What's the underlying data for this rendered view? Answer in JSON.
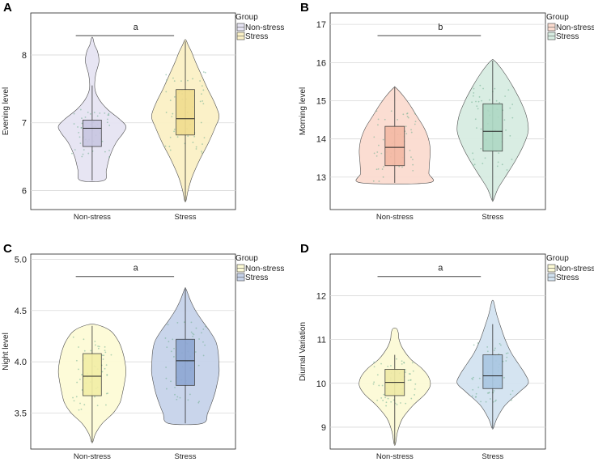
{
  "chart_data": [
    {
      "type": "violin",
      "panel_label": "A",
      "ylabel": "Evening level",
      "categories": [
        "Non-stress",
        "Stress"
      ],
      "ylim": [
        5.72,
        8.62
      ],
      "yticks": [
        6,
        7,
        8
      ],
      "grid": true,
      "legend": {
        "title": "Group",
        "entries": [
          "Non-stress",
          "Stress"
        ],
        "placement": "top-right-outside"
      },
      "significance": "a",
      "series": [
        {
          "name": "Non-stress",
          "fill": "#e6e4f3",
          "box_fill": "#c9c6e2",
          "min": 6.15,
          "q1": 6.65,
          "median": 6.92,
          "q3": 7.04,
          "max": 8.25,
          "whisker_low": 6.15,
          "whisker_high": 7.55,
          "density": [
            [
              6.15,
              0.35
            ],
            [
              6.3,
              0.42
            ],
            [
              6.5,
              0.52
            ],
            [
              6.7,
              0.7
            ],
            [
              6.85,
              0.92
            ],
            [
              6.95,
              1.0
            ],
            [
              7.05,
              0.82
            ],
            [
              7.2,
              0.45
            ],
            [
              7.35,
              0.2
            ],
            [
              7.5,
              0.08
            ],
            [
              7.7,
              0.1
            ],
            [
              7.9,
              0.2
            ],
            [
              8.05,
              0.16
            ],
            [
              8.15,
              0.07
            ],
            [
              8.25,
              0.02
            ]
          ]
        },
        {
          "name": "Stress",
          "fill": "#fbf1c6",
          "box_fill": "#f1dc8e",
          "min": 5.85,
          "q1": 6.82,
          "median": 7.06,
          "q3": 7.49,
          "max": 8.22,
          "whisker_low": 5.85,
          "whisker_high": 8.2,
          "density": [
            [
              5.85,
              0.02
            ],
            [
              6.0,
              0.08
            ],
            [
              6.2,
              0.2
            ],
            [
              6.45,
              0.42
            ],
            [
              6.7,
              0.68
            ],
            [
              6.95,
              0.9
            ],
            [
              7.1,
              1.0
            ],
            [
              7.3,
              0.86
            ],
            [
              7.5,
              0.66
            ],
            [
              7.7,
              0.48
            ],
            [
              7.9,
              0.3
            ],
            [
              8.05,
              0.18
            ],
            [
              8.15,
              0.08
            ],
            [
              8.22,
              0.02
            ]
          ]
        }
      ]
    },
    {
      "type": "violin",
      "panel_label": "B",
      "ylabel": "Morning level",
      "categories": [
        "Non-stress",
        "Stress"
      ],
      "ylim": [
        12.15,
        17.3
      ],
      "yticks": [
        13,
        14,
        15,
        16,
        17
      ],
      "grid": true,
      "legend": {
        "title": "Group",
        "entries": [
          "Non-stress",
          "Stress"
        ],
        "placement": "top-right-outside"
      },
      "significance": "b",
      "series": [
        {
          "name": "Non-stress",
          "fill": "#fbdcd0",
          "box_fill": "#f4b9a4",
          "min": 12.85,
          "q1": 13.3,
          "median": 13.78,
          "q3": 14.33,
          "max": 15.35,
          "whisker_low": 12.85,
          "whisker_high": 15.35,
          "density": [
            [
              12.85,
              0.95
            ],
            [
              13.1,
              0.96
            ],
            [
              13.4,
              0.98
            ],
            [
              13.7,
              1.0
            ],
            [
              14.0,
              0.95
            ],
            [
              14.3,
              0.82
            ],
            [
              14.6,
              0.62
            ],
            [
              14.9,
              0.42
            ],
            [
              15.15,
              0.22
            ],
            [
              15.35,
              0.02
            ]
          ]
        },
        {
          "name": "Stress",
          "fill": "#d8ede2",
          "box_fill": "#aed8c4",
          "min": 12.4,
          "q1": 13.68,
          "median": 14.2,
          "q3": 14.92,
          "max": 16.07,
          "whisker_low": 12.4,
          "whisker_high": 16.05,
          "density": [
            [
              12.4,
              0.02
            ],
            [
              12.7,
              0.15
            ],
            [
              13.0,
              0.35
            ],
            [
              13.4,
              0.62
            ],
            [
              13.8,
              0.85
            ],
            [
              14.2,
              1.0
            ],
            [
              14.6,
              0.95
            ],
            [
              15.0,
              0.78
            ],
            [
              15.4,
              0.55
            ],
            [
              15.7,
              0.35
            ],
            [
              15.95,
              0.15
            ],
            [
              16.07,
              0.02
            ]
          ]
        }
      ]
    },
    {
      "type": "violin",
      "panel_label": "C",
      "ylabel": "Night level",
      "categories": [
        "Non-stress",
        "Stress"
      ],
      "ylim": [
        3.15,
        5.05
      ],
      "yticks": [
        3.5,
        4.0,
        4.5,
        5.0
      ],
      "ytick_labels": [
        "3.5",
        "4.0",
        "4.5",
        "5.0"
      ],
      "grid": true,
      "legend": {
        "title": "Group",
        "entries": [
          "Non-stress",
          "Stress"
        ],
        "placement": "top-right-outside"
      },
      "significance": "a",
      "series": [
        {
          "name": "Non-stress",
          "fill": "#fdfbd6",
          "box_fill": "#f2eea6",
          "min": 3.22,
          "q1": 3.67,
          "median": 3.86,
          "q3": 4.08,
          "max": 4.36,
          "whisker_low": 3.22,
          "whisker_high": 4.35,
          "density": [
            [
              3.22,
              0.02
            ],
            [
              3.3,
              0.1
            ],
            [
              3.4,
              0.3
            ],
            [
              3.5,
              0.62
            ],
            [
              3.6,
              0.82
            ],
            [
              3.7,
              0.9
            ],
            [
              3.8,
              0.96
            ],
            [
              3.9,
              1.0
            ],
            [
              4.0,
              0.97
            ],
            [
              4.1,
              0.9
            ],
            [
              4.2,
              0.78
            ],
            [
              4.3,
              0.55
            ],
            [
              4.36,
              0.15
            ]
          ]
        },
        {
          "name": "Stress",
          "fill": "#c7d3ea",
          "box_fill": "#8ea7d3",
          "min": 3.4,
          "q1": 3.77,
          "median": 4.01,
          "q3": 4.22,
          "max": 4.71,
          "whisker_low": 3.4,
          "whisker_high": 4.71,
          "density": [
            [
              3.4,
              0.5
            ],
            [
              3.5,
              0.66
            ],
            [
              3.6,
              0.78
            ],
            [
              3.7,
              0.88
            ],
            [
              3.8,
              0.95
            ],
            [
              3.9,
              1.0
            ],
            [
              4.0,
              0.99
            ],
            [
              4.1,
              0.97
            ],
            [
              4.2,
              0.9
            ],
            [
              4.3,
              0.72
            ],
            [
              4.4,
              0.5
            ],
            [
              4.5,
              0.3
            ],
            [
              4.6,
              0.15
            ],
            [
              4.71,
              0.02
            ]
          ]
        }
      ]
    },
    {
      "type": "violin",
      "panel_label": "D",
      "ylabel": "Diurnal Variation",
      "categories": [
        "Non-stress",
        "Stress"
      ],
      "ylim": [
        8.5,
        12.95
      ],
      "yticks": [
        9,
        10,
        11,
        12
      ],
      "grid": true,
      "legend": {
        "title": "Group",
        "entries": [
          "Non-stress",
          "Stress"
        ],
        "placement": "top-right-outside"
      },
      "significance": "a",
      "series": [
        {
          "name": "Non-stress",
          "fill": "#fcfad6",
          "box_fill": "#efeaa6",
          "min": 8.62,
          "q1": 9.72,
          "median": 10.02,
          "q3": 10.32,
          "max": 11.25,
          "whisker_low": 8.62,
          "whisker_high": 10.65,
          "density": [
            [
              8.62,
              0.02
            ],
            [
              8.9,
              0.08
            ],
            [
              9.2,
              0.22
            ],
            [
              9.5,
              0.52
            ],
            [
              9.75,
              0.85
            ],
            [
              9.95,
              1.0
            ],
            [
              10.15,
              0.95
            ],
            [
              10.35,
              0.75
            ],
            [
              10.55,
              0.45
            ],
            [
              10.8,
              0.22
            ],
            [
              11.0,
              0.12
            ],
            [
              11.15,
              0.1
            ],
            [
              11.25,
              0.05
            ]
          ]
        },
        {
          "name": "Stress",
          "fill": "#d3e3f1",
          "box_fill": "#a9c7e2",
          "min": 8.98,
          "q1": 9.88,
          "median": 10.17,
          "q3": 10.65,
          "max": 11.88,
          "whisker_low": 8.98,
          "whisker_high": 11.35,
          "density": [
            [
              8.98,
              0.02
            ],
            [
              9.2,
              0.12
            ],
            [
              9.5,
              0.35
            ],
            [
              9.8,
              0.75
            ],
            [
              10.0,
              1.0
            ],
            [
              10.2,
              0.92
            ],
            [
              10.45,
              0.72
            ],
            [
              10.7,
              0.52
            ],
            [
              11.0,
              0.35
            ],
            [
              11.3,
              0.22
            ],
            [
              11.55,
              0.12
            ],
            [
              11.75,
              0.06
            ],
            [
              11.88,
              0.02
            ]
          ]
        }
      ]
    }
  ]
}
